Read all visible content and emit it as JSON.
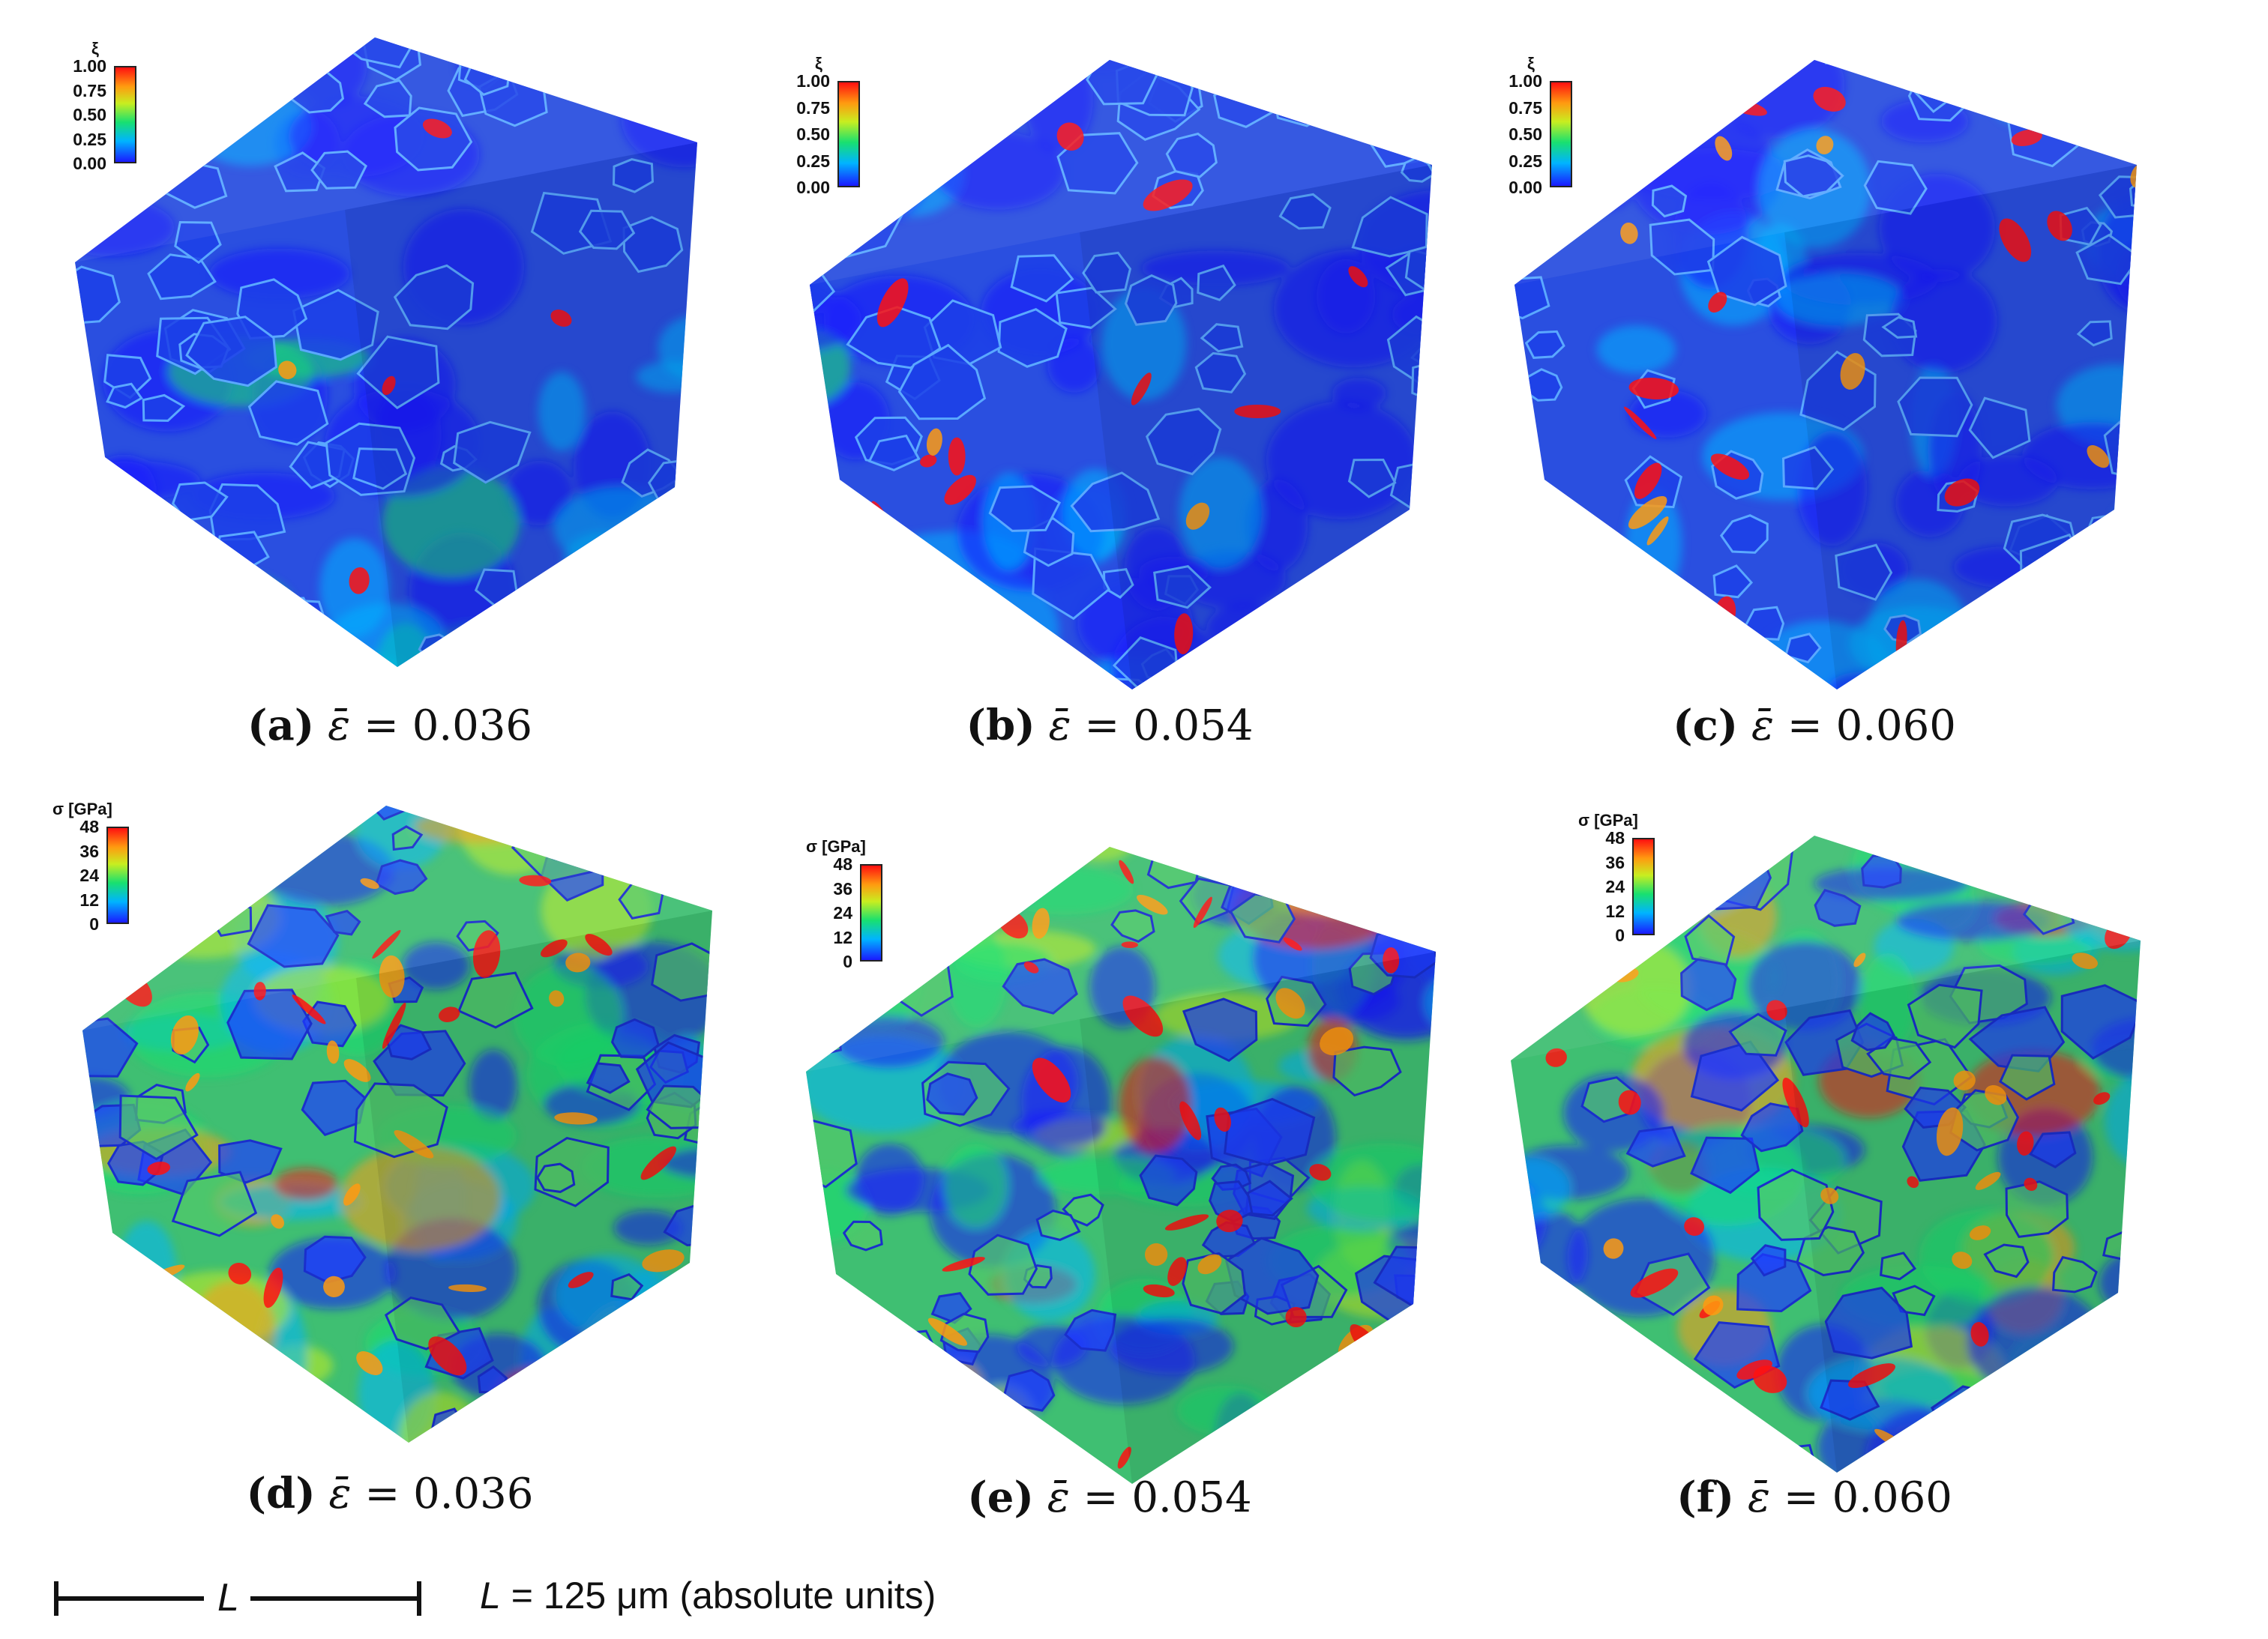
{
  "figure": {
    "panels": [
      {
        "letter": "a",
        "symbol": "ε̄",
        "equals": "=",
        "value": "0.036",
        "legend": "xi"
      },
      {
        "letter": "b",
        "symbol": "ε̄",
        "equals": "=",
        "value": "0.054",
        "legend": "xi"
      },
      {
        "letter": "c",
        "symbol": "ε̄",
        "equals": "=",
        "value": "0.060",
        "legend": "xi"
      },
      {
        "letter": "d",
        "symbol": "ε̄",
        "equals": "=",
        "value": "0.036",
        "legend": "sigma"
      },
      {
        "letter": "e",
        "symbol": "ε̄",
        "equals": "=",
        "value": "0.054",
        "legend": "sigma"
      },
      {
        "letter": "f",
        "symbol": "ε̄",
        "equals": "=",
        "value": "0.060",
        "legend": "sigma"
      }
    ],
    "legends": {
      "xi": {
        "title": "ξ",
        "ticks": [
          "1.00",
          "0.75",
          "0.50",
          "0.25",
          "0.00"
        ]
      },
      "sigma": {
        "title": "σ [GPa]",
        "ticks": [
          "48",
          "36",
          "24",
          "12",
          "0"
        ]
      }
    },
    "colormap": [
      "#1a1aff",
      "#00b4ff",
      "#18e070",
      "#c8ee20",
      "#ff9a10",
      "#ff1010"
    ],
    "scale": {
      "letter": "L",
      "text_symbol": "L",
      "text_rest": " = 125 μm (absolute units)"
    }
  }
}
